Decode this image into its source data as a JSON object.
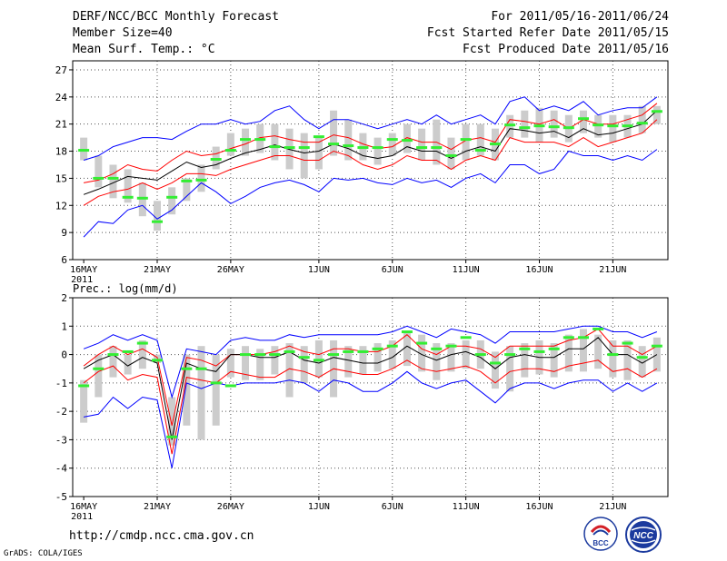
{
  "header": {
    "left": [
      "DERF/NCC/BCC Monthly Forecast",
      "Member Size=40",
      "Mean Surf. Temp.: °C"
    ],
    "right": [
      "For 2011/05/16-2011/06/24",
      "Fcst Started Refer Date 2011/05/15",
      "Fcst Produced Date 2011/05/16"
    ]
  },
  "footer": {
    "url": "http://cmdp.ncc.cma.gov.cn",
    "credit": "GrADS: COLA/IGES",
    "logo_left_text": "BCC",
    "logo_right_text": "NCC"
  },
  "colors": {
    "ensemble_mean": "#000000",
    "spread_band": "#ff0000",
    "extreme_range": "#0000ff",
    "box": "#cccccc",
    "observation": "#33ee33",
    "grid": "#555555"
  },
  "chart_data": [
    {
      "type": "line",
      "title": "Mean Surf. Temp.: °C",
      "ylim": [
        6,
        28
      ],
      "yticks": [
        6,
        9,
        12,
        15,
        18,
        21,
        24,
        27
      ],
      "xlim": [
        0,
        40
      ],
      "xtick_positions": [
        0,
        5,
        10,
        16,
        21,
        26,
        31,
        36
      ],
      "xtick_labels": [
        "16MAY",
        "21MAY",
        "26MAY",
        "1JUN",
        "6JUN",
        "11JUN",
        "16JUN",
        "21JUN"
      ],
      "year_label": "2011",
      "series": [
        {
          "name": "max",
          "values": [
            8.5,
            10.2,
            10.0,
            11.5,
            12.0,
            10.5,
            11.5,
            13.0,
            14.5,
            13.5,
            12.2,
            13.0,
            14.0,
            14.5,
            14.8,
            14.3,
            13.5,
            15.0,
            14.8,
            15.0,
            14.5,
            14.3,
            15.0,
            14.5,
            14.8,
            14.0,
            15.0,
            15.5,
            14.5,
            16.5,
            16.5,
            15.5,
            16.0,
            18.0,
            17.5,
            17.5,
            17.0,
            17.5,
            17.0,
            18.2
          ]
        },
        {
          "name": "lower",
          "values": [
            12.0,
            13.0,
            13.5,
            13.8,
            14.5,
            13.8,
            14.5,
            15.5,
            15.5,
            15.3,
            16.0,
            16.5,
            17.0,
            17.5,
            17.5,
            17.0,
            17.0,
            18.0,
            17.5,
            16.5,
            16.0,
            16.5,
            17.5,
            17.0,
            17.0,
            16.0,
            17.0,
            17.5,
            17.0,
            19.5,
            19.0,
            19.0,
            19.0,
            18.5,
            19.5,
            18.5,
            19.0,
            19.5,
            20.0,
            21.5
          ]
        },
        {
          "name": "mean",
          "values": [
            13.2,
            13.8,
            14.5,
            15.2,
            15.0,
            14.8,
            15.8,
            16.8,
            16.2,
            16.5,
            17.2,
            17.8,
            18.2,
            18.7,
            18.2,
            17.8,
            18.0,
            18.8,
            18.3,
            17.5,
            17.2,
            17.5,
            18.5,
            18.0,
            18.0,
            17.2,
            18.0,
            18.5,
            18.0,
            20.5,
            20.3,
            20.0,
            20.2,
            19.5,
            20.5,
            19.8,
            20.0,
            20.5,
            21.0,
            22.5
          ]
        },
        {
          "name": "upper",
          "values": [
            14.5,
            14.8,
            15.5,
            16.5,
            16.0,
            15.8,
            17.0,
            18.0,
            17.5,
            17.7,
            18.3,
            18.8,
            19.5,
            19.7,
            19.3,
            19.0,
            19.0,
            19.8,
            19.5,
            18.8,
            18.3,
            18.5,
            19.5,
            19.0,
            19.0,
            18.2,
            19.2,
            19.5,
            19.0,
            21.5,
            21.3,
            21.0,
            21.5,
            20.5,
            21.5,
            21.0,
            21.0,
            21.5,
            22.0,
            23.3
          ]
        },
        {
          "name": "min",
          "values": [
            17.0,
            17.5,
            18.5,
            19.0,
            19.5,
            19.5,
            19.3,
            20.2,
            21.0,
            21.0,
            21.5,
            21.0,
            21.3,
            22.5,
            23.0,
            21.5,
            20.5,
            21.5,
            21.5,
            21.0,
            20.5,
            21.0,
            21.5,
            21.0,
            22.0,
            21.0,
            21.5,
            22.0,
            21.0,
            23.5,
            24.0,
            22.5,
            23.0,
            22.5,
            23.5,
            22.0,
            22.5,
            22.8,
            22.8,
            24.0
          ]
        },
        {
          "name": "box_low",
          "values": [
            17.0,
            14.0,
            12.8,
            12.3,
            10.8,
            9.2,
            11.0,
            12.5,
            13.5,
            16.0,
            17.5,
            17.5,
            17.8,
            17.0,
            16.0,
            15.0,
            16.0,
            17.5,
            17.0,
            17.0,
            16.5,
            17.5,
            17.8,
            17.0,
            16.5,
            16.0,
            17.0,
            17.5,
            17.0,
            19.5,
            19.5,
            19.0,
            19.5,
            19.0,
            20.0,
            19.5,
            19.0,
            19.5,
            20.0,
            21.0
          ]
        },
        {
          "name": "box_high",
          "values": [
            19.5,
            17.5,
            16.5,
            16.0,
            14.5,
            12.5,
            14.0,
            15.0,
            16.5,
            18.5,
            20.0,
            20.5,
            21.0,
            21.0,
            20.5,
            20.0,
            19.5,
            22.5,
            21.5,
            20.0,
            19.5,
            20.0,
            21.0,
            20.5,
            21.5,
            19.5,
            21.0,
            21.0,
            20.5,
            22.0,
            22.5,
            22.8,
            22.5,
            22.0,
            22.5,
            22.0,
            22.0,
            22.0,
            23.0,
            23.0
          ]
        },
        {
          "name": "observed",
          "values": [
            18.1,
            15.0,
            15.0,
            12.9,
            12.8,
            10.2,
            12.9,
            14.7,
            14.8,
            17.1,
            18.1,
            19.3,
            19.3,
            18.5,
            18.4,
            18.4,
            19.6,
            18.8,
            18.6,
            18.4,
            18.4,
            19.3,
            19.2,
            18.4,
            18.4,
            17.5,
            19.3,
            18.1,
            18.8,
            20.9,
            20.6,
            20.8,
            20.7,
            20.6,
            21.6,
            20.9,
            20.8,
            20.8,
            21.1,
            22.4
          ]
        }
      ]
    },
    {
      "type": "line",
      "title": "Prec.: log(mm/d)",
      "ylim": [
        -5,
        2
      ],
      "yticks": [
        -5,
        -4,
        -3,
        -2,
        -1,
        0,
        1,
        2
      ],
      "xlim": [
        0,
        40
      ],
      "xtick_positions": [
        0,
        5,
        10,
        16,
        21,
        26,
        31,
        36
      ],
      "xtick_labels": [
        "16MAY",
        "21MAY",
        "26MAY",
        "1JUN",
        "6JUN",
        "11JUN",
        "16JUN",
        "21JUN"
      ],
      "year_label": "2011",
      "series": [
        {
          "name": "max",
          "values": [
            -2.2,
            -2.1,
            -1.5,
            -1.9,
            -1.5,
            -1.6,
            -4.0,
            -1.0,
            -1.2,
            -1.0,
            -1.1,
            -1.0,
            -1.0,
            -1.0,
            -0.9,
            -1.0,
            -1.3,
            -0.9,
            -1.0,
            -1.3,
            -1.3,
            -1.0,
            -0.6,
            -1.0,
            -1.2,
            -1.0,
            -0.9,
            -1.3,
            -1.7,
            -1.2,
            -1.0,
            -1.0,
            -1.2,
            -1.0,
            -0.9,
            -0.9,
            -1.3,
            -1.0,
            -1.3,
            -1.0
          ]
        },
        {
          "name": "lower",
          "values": [
            -1.0,
            -0.6,
            -0.4,
            -0.9,
            -0.7,
            -0.8,
            -3.5,
            -0.8,
            -0.9,
            -1.0,
            -0.6,
            -0.7,
            -0.8,
            -0.8,
            -0.5,
            -0.6,
            -0.8,
            -0.5,
            -0.6,
            -0.7,
            -0.7,
            -0.5,
            -0.2,
            -0.5,
            -0.6,
            -0.5,
            -0.4,
            -0.6,
            -1.0,
            -0.6,
            -0.5,
            -0.5,
            -0.6,
            -0.4,
            -0.3,
            -0.2,
            -0.6,
            -0.5,
            -0.8,
            -0.5
          ]
        },
        {
          "name": "mean",
          "values": [
            -0.5,
            -0.2,
            0.0,
            -0.4,
            -0.1,
            -0.3,
            -3.0,
            -0.3,
            -0.5,
            -0.6,
            0.0,
            0.0,
            -0.1,
            -0.1,
            0.1,
            -0.2,
            -0.3,
            -0.1,
            -0.2,
            -0.3,
            -0.3,
            -0.1,
            0.3,
            0.0,
            -0.2,
            0.0,
            0.1,
            -0.1,
            -0.5,
            -0.1,
            0.0,
            -0.1,
            -0.1,
            0.2,
            0.2,
            0.6,
            0.0,
            0.0,
            -0.3,
            0.0
          ]
        },
        {
          "name": "upper",
          "values": [
            -0.4,
            0.0,
            0.3,
            0.0,
            0.2,
            -0.1,
            -2.5,
            -0.1,
            -0.2,
            -0.4,
            0.0,
            0.0,
            0.0,
            0.1,
            0.3,
            0.1,
            0.0,
            0.2,
            0.2,
            0.1,
            0.1,
            0.3,
            0.7,
            0.2,
            0.0,
            0.3,
            0.3,
            0.2,
            -0.1,
            0.3,
            0.3,
            0.3,
            0.3,
            0.5,
            0.6,
            0.9,
            0.3,
            0.3,
            0.0,
            0.3
          ]
        },
        {
          "name": "min",
          "values": [
            0.2,
            0.4,
            0.7,
            0.5,
            0.7,
            0.5,
            -1.5,
            0.2,
            0.1,
            0.0,
            0.5,
            0.6,
            0.5,
            0.5,
            0.7,
            0.6,
            0.7,
            0.7,
            0.7,
            0.7,
            0.7,
            0.8,
            1.0,
            0.8,
            0.6,
            0.9,
            0.8,
            0.7,
            0.4,
            0.8,
            0.8,
            0.8,
            0.8,
            0.9,
            1.0,
            1.0,
            0.8,
            0.8,
            0.6,
            0.8
          ]
        },
        {
          "name": "box_low",
          "values": [
            -2.4,
            -1.5,
            -0.8,
            -0.7,
            -0.5,
            -0.3,
            -3.2,
            -2.5,
            -3.0,
            -2.5,
            -0.8,
            -0.9,
            -0.9,
            -0.7,
            -1.5,
            -1.0,
            -0.8,
            -1.5,
            -0.8,
            -0.7,
            -0.6,
            -0.5,
            -0.4,
            -0.6,
            -0.9,
            -0.6,
            -0.5,
            -0.5,
            -1.2,
            -1.3,
            -0.8,
            -0.7,
            -0.8,
            -0.6,
            -0.6,
            -0.5,
            -0.8,
            -0.9,
            -0.8,
            -0.6
          ]
        },
        {
          "name": "box_high",
          "values": [
            -0.9,
            0.0,
            0.3,
            0.0,
            0.5,
            0.0,
            -1.5,
            0.0,
            0.3,
            0.0,
            0.2,
            0.3,
            0.2,
            0.3,
            0.4,
            0.3,
            0.5,
            0.5,
            0.3,
            0.3,
            0.4,
            0.5,
            0.8,
            0.7,
            0.4,
            0.4,
            0.5,
            0.5,
            0.1,
            0.3,
            0.4,
            0.5,
            0.4,
            0.7,
            0.9,
            0.7,
            0.5,
            0.5,
            0.3,
            0.6
          ]
        },
        {
          "name": "observed",
          "values": [
            -1.1,
            -0.5,
            0.0,
            0.1,
            0.4,
            -0.2,
            -2.9,
            -0.5,
            -0.5,
            -1.0,
            -1.1,
            0.0,
            0.0,
            0.0,
            0.1,
            -0.1,
            -0.2,
            0.0,
            0.1,
            0.1,
            0.2,
            0.3,
            0.8,
            0.4,
            0.2,
            0.3,
            0.6,
            0.0,
            -0.3,
            0.0,
            0.2,
            0.1,
            0.2,
            0.6,
            0.6,
            0.9,
            0.0,
            0.4,
            -0.1,
            0.3
          ]
        }
      ]
    }
  ]
}
